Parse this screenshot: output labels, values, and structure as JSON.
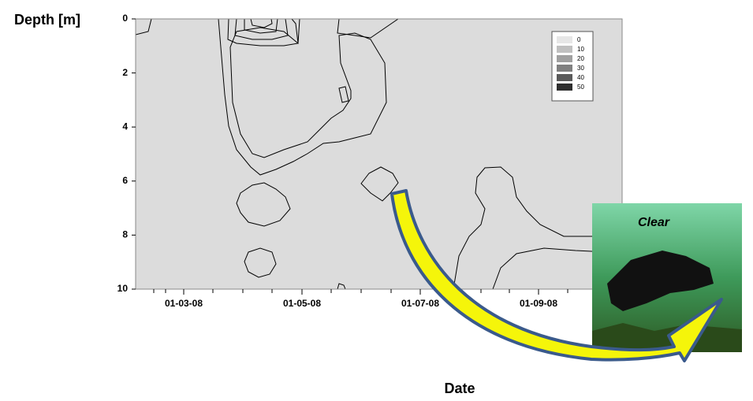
{
  "chart_data": {
    "type": "contour",
    "y_label": "Depth [m]",
    "x_label": "Date",
    "ylim": [
      0,
      10
    ],
    "yticks": [
      0,
      2,
      4,
      6,
      8,
      10
    ],
    "y_inverted": true,
    "xticks": [
      "01-03-08",
      "01-05-08",
      "01-07-08",
      "01-09-08"
    ],
    "levels": [
      0,
      10,
      20,
      30,
      40,
      50
    ],
    "level_colors": [
      "#e6e6e6",
      "#c0c0c0",
      "#a0a0a0",
      "#808080",
      "#5a5a5a",
      "#2e2e2e"
    ],
    "annotation": "Clear"
  }
}
